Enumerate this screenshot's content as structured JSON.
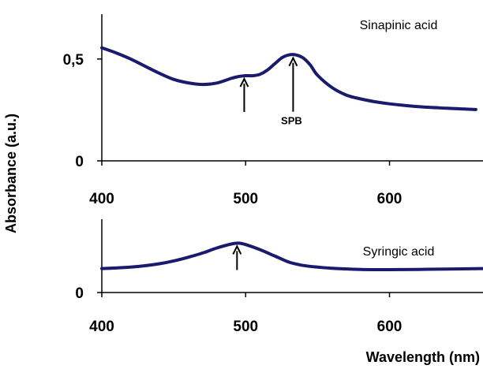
{
  "ylabel": "Absorbance (a.u.)",
  "xlabel": "Wavelength (nm)",
  "chart_data": [
    {
      "type": "line",
      "title": "Sinapinic acid",
      "xlim": [
        400,
        665
      ],
      "ylim": [
        0,
        0.72
      ],
      "x_ticks": [
        "400",
        "500",
        "600"
      ],
      "x_tick_values": [
        400,
        500,
        600
      ],
      "y_ticks": [
        "0",
        "0,5"
      ],
      "y_tick_values": [
        0,
        0.5
      ],
      "series": [
        {
          "color": "#1a1a6e",
          "x": [
            400,
            410,
            420,
            430,
            440,
            450,
            460,
            470,
            480,
            490,
            495,
            500,
            505,
            510,
            515,
            520,
            525,
            530,
            535,
            540,
            545,
            550,
            560,
            570,
            580,
            590,
            600,
            620,
            640,
            660
          ],
          "y": [
            0.555,
            0.53,
            0.5,
            0.465,
            0.43,
            0.4,
            0.383,
            0.375,
            0.382,
            0.405,
            0.414,
            0.418,
            0.418,
            0.425,
            0.445,
            0.475,
            0.505,
            0.52,
            0.52,
            0.505,
            0.47,
            0.42,
            0.36,
            0.323,
            0.304,
            0.29,
            0.28,
            0.266,
            0.258,
            0.252
          ]
        }
      ],
      "annotations": [
        {
          "label": "",
          "x": 499,
          "y": 0.418
        },
        {
          "label": "SPB",
          "x": 533,
          "y": 0.52
        }
      ]
    },
    {
      "type": "line",
      "title": "Syringic acid",
      "xlim": [
        400,
        665
      ],
      "ylim": [
        0,
        0.26
      ],
      "x_ticks": [
        "400",
        "500",
        "600"
      ],
      "x_tick_values": [
        400,
        500,
        600
      ],
      "y_ticks": [
        "0"
      ],
      "y_tick_values": [
        0
      ],
      "series": [
        {
          "color": "#1a1a6e",
          "x": [
            400,
            410,
            420,
            430,
            440,
            450,
            460,
            470,
            480,
            490,
            495,
            500,
            510,
            520,
            530,
            540,
            550,
            560,
            580,
            600,
            620,
            640,
            665
          ],
          "y": [
            0.085,
            0.087,
            0.09,
            0.095,
            0.102,
            0.112,
            0.125,
            0.14,
            0.158,
            0.172,
            0.175,
            0.17,
            0.152,
            0.13,
            0.108,
            0.096,
            0.09,
            0.086,
            0.082,
            0.081,
            0.082,
            0.083,
            0.085
          ]
        }
      ],
      "annotations": [
        {
          "label": "",
          "x": 494,
          "y": 0.175
        }
      ]
    }
  ]
}
